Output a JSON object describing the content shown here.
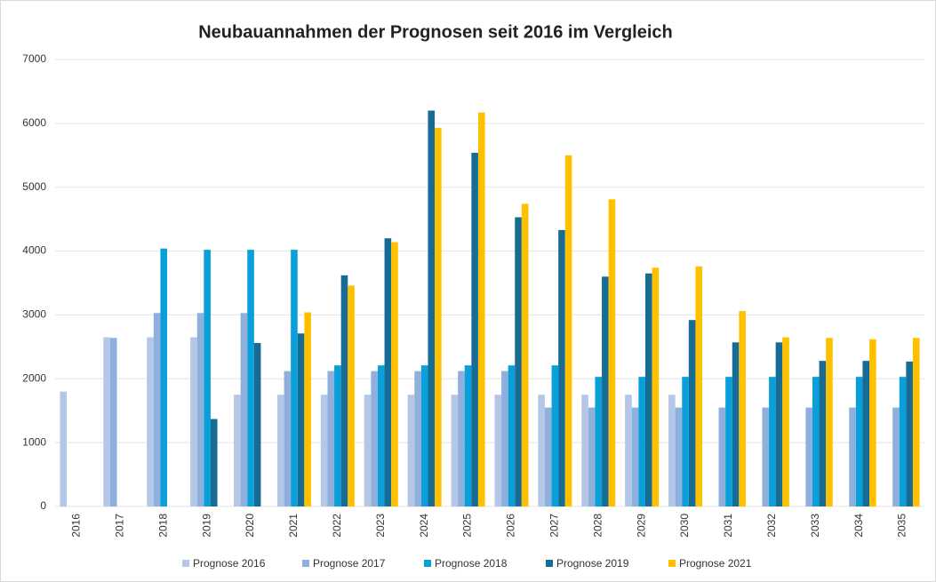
{
  "chart_data": {
    "type": "bar",
    "title": "Neubauannahmen der Prognosen seit 2016 im Vergleich",
    "categories": [
      "2016",
      "2017",
      "2018",
      "2019",
      "2020",
      "2021",
      "2022",
      "2023",
      "2024",
      "2025",
      "2026",
      "2027",
      "2028",
      "2029",
      "2030",
      "2031",
      "2032",
      "2033",
      "2034",
      "2035"
    ],
    "series": [
      {
        "name": "Prognose 2016",
        "color": "#b4c7e7",
        "values": [
          1800,
          2650,
          2650,
          2650,
          1750,
          1750,
          1750,
          1750,
          1750,
          1750,
          1750,
          1750,
          1750,
          1750,
          1750,
          null,
          null,
          null,
          null,
          null
        ]
      },
      {
        "name": "Prognose 2017",
        "color": "#8fb0dc",
        "values": [
          null,
          2640,
          3030,
          3030,
          3030,
          2120,
          2120,
          2120,
          2120,
          2120,
          2120,
          1550,
          1550,
          1550,
          1550,
          1550,
          1550,
          1550,
          1550,
          1550
        ]
      },
      {
        "name": "Prognose 2018",
        "color": "#0a9fd8",
        "values": [
          null,
          null,
          4040,
          4020,
          4020,
          4020,
          2210,
          2210,
          2210,
          2210,
          2210,
          2210,
          2030,
          2030,
          2030,
          2030,
          2030,
          2030,
          2030,
          2030
        ]
      },
      {
        "name": "Prognose 2019",
        "color": "#166c94",
        "values": [
          null,
          null,
          null,
          1370,
          2560,
          2710,
          3620,
          4200,
          6200,
          5540,
          4530,
          4330,
          3600,
          3650,
          2920,
          2570,
          2570,
          2280,
          2280,
          2270
        ]
      },
      {
        "name": "Prognose 2021",
        "color": "#ffc000",
        "values": [
          null,
          null,
          null,
          null,
          null,
          3040,
          3460,
          4140,
          5930,
          6170,
          4740,
          5500,
          4810,
          3740,
          3760,
          3060,
          2650,
          2640,
          2620,
          2640
        ]
      }
    ],
    "ylim": [
      0,
      7000
    ],
    "yticks": [
      0,
      1000,
      2000,
      3000,
      4000,
      5000,
      6000,
      7000
    ],
    "grid": true,
    "legend": "bottom"
  }
}
